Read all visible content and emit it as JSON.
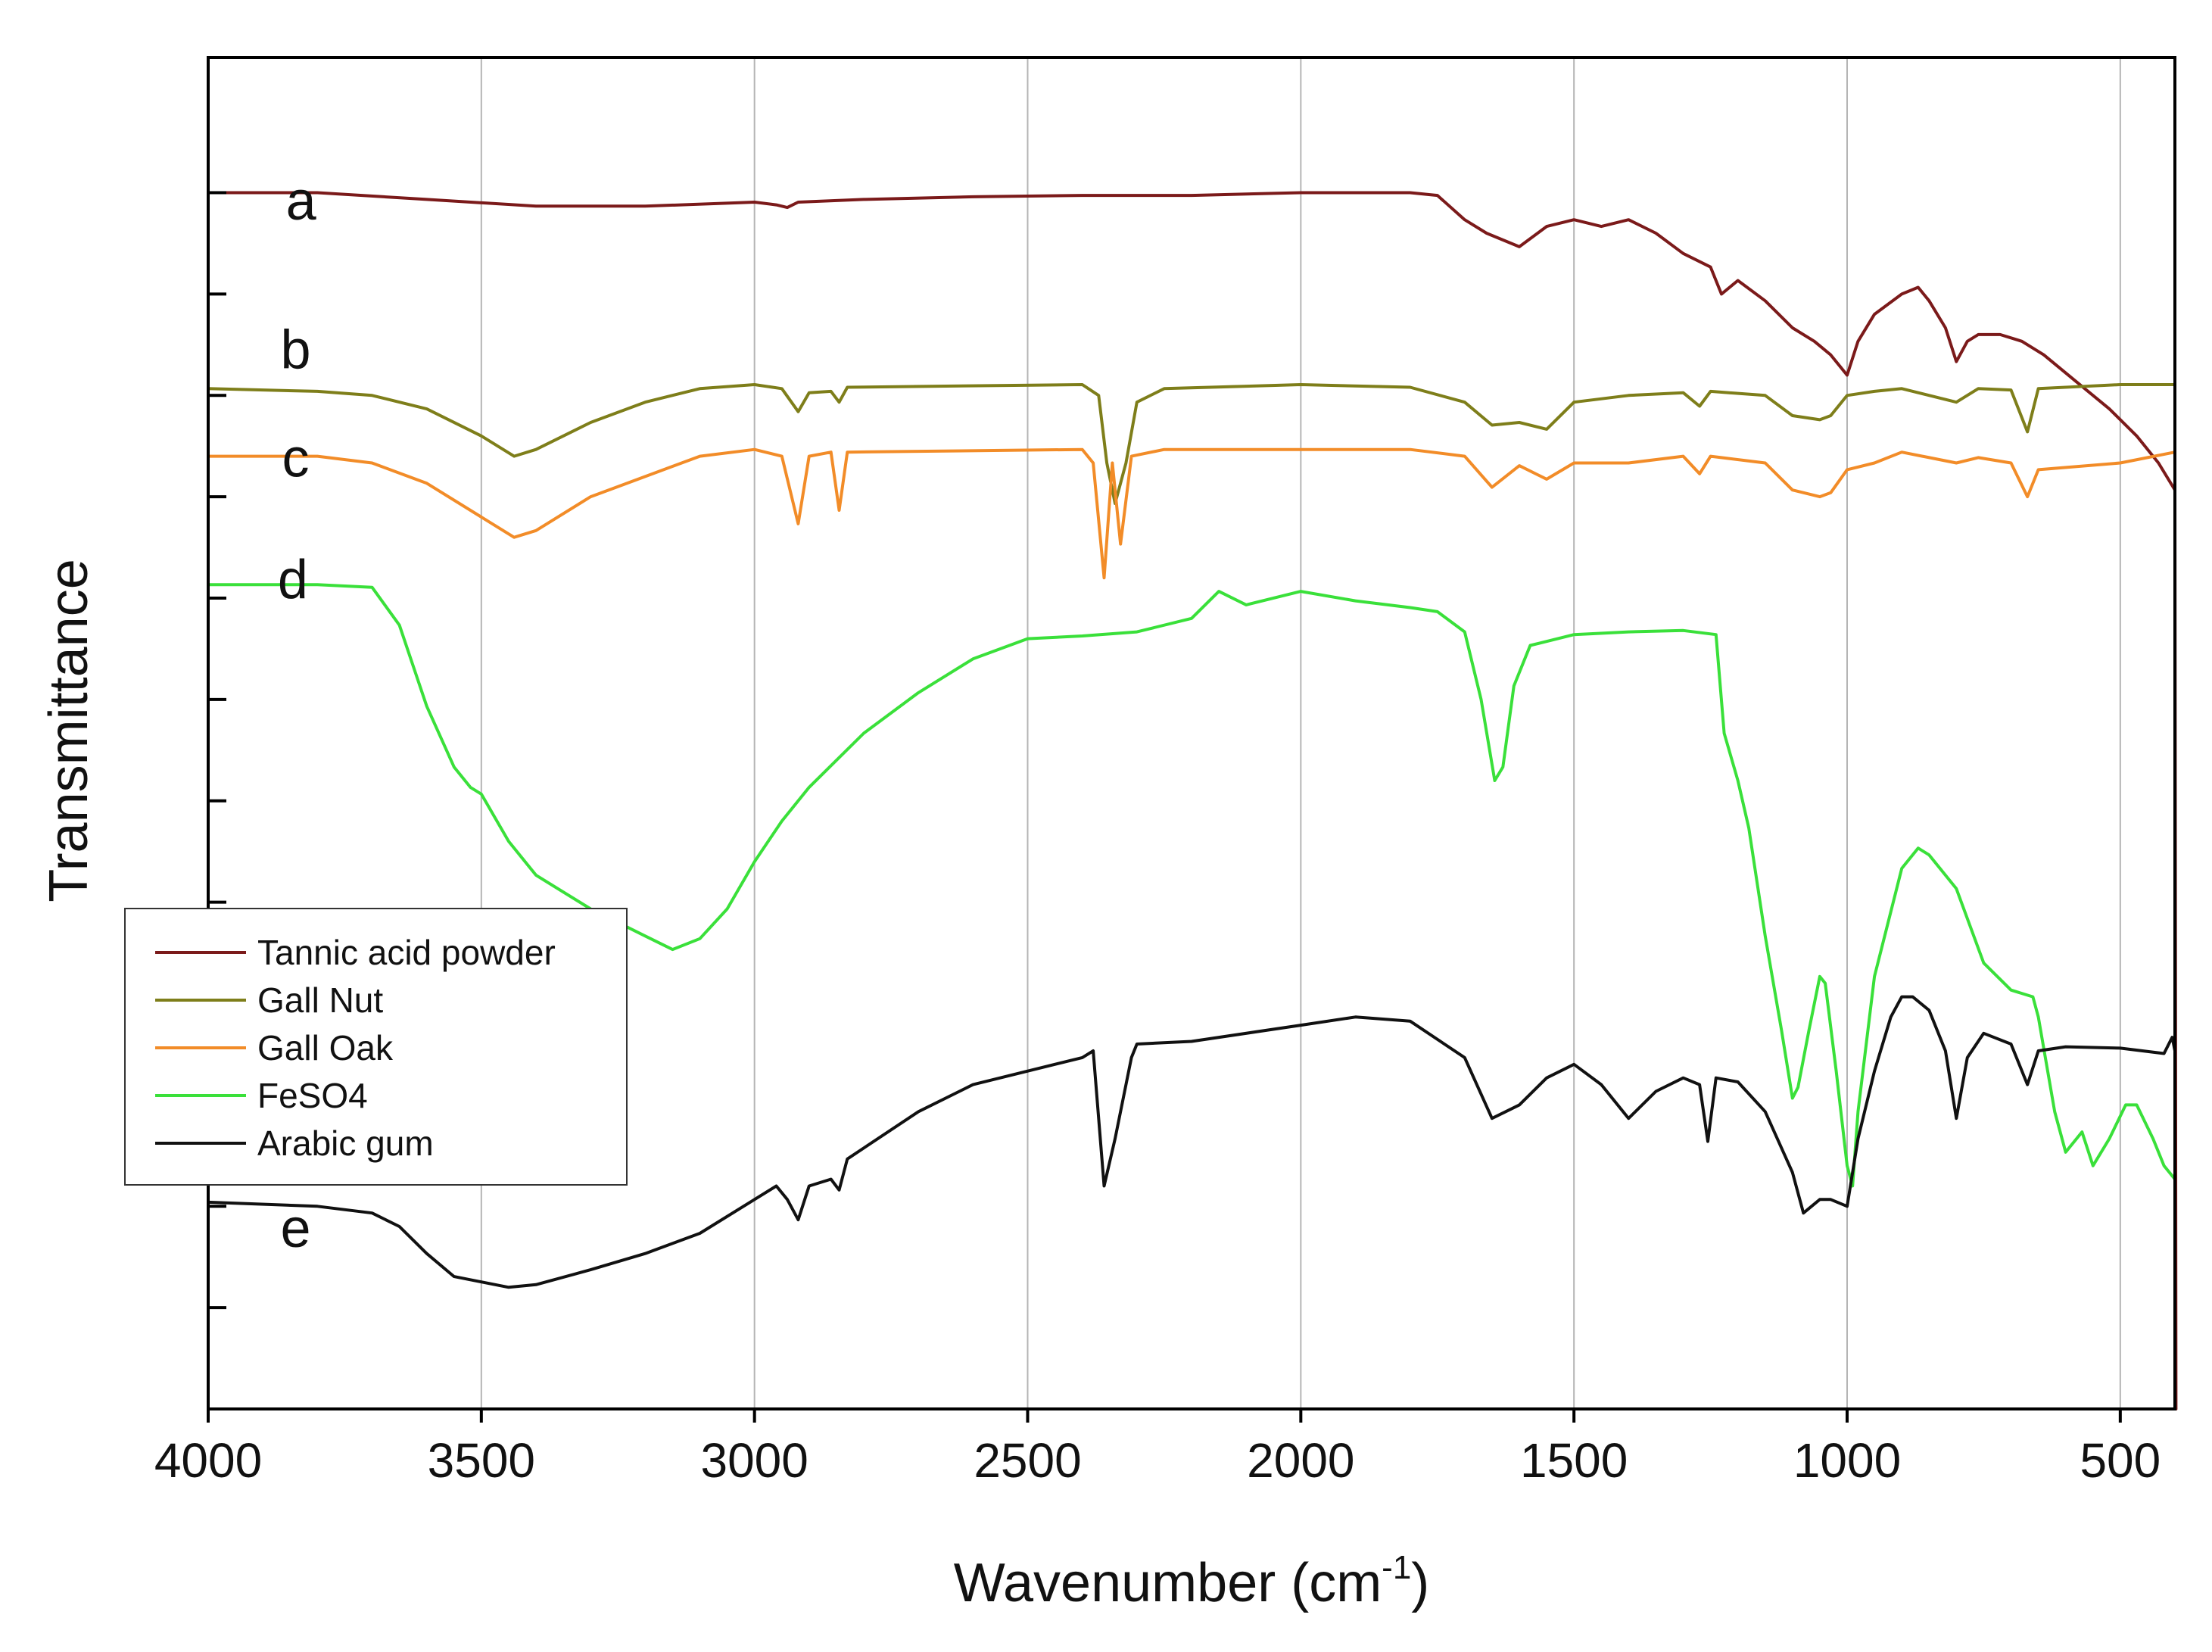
{
  "chart_data": {
    "type": "line",
    "title": "",
    "xlabel": "Wavenumber (cm",
    "xlabel_sup": "-1",
    "xlabel_close": ")",
    "ylabel": "Transmittance",
    "xlim": [
      4000,
      400
    ],
    "ylim": [
      0,
      100
    ],
    "x_ticks": [
      4000,
      3500,
      3000,
      2500,
      2000,
      1500,
      1000,
      500
    ],
    "x_tick_labels": [
      "4000",
      "3500",
      "3000",
      "2500",
      "2000",
      "1500",
      "1000",
      "500"
    ],
    "x_gridlines": [
      3500,
      3000,
      2500,
      2000,
      1500,
      1000,
      500
    ],
    "y_ticks": [
      7.5,
      15,
      22.5,
      30,
      37.5,
      45,
      52.5,
      60,
      67.5,
      75,
      82.5,
      90
    ],
    "legend_position": "lower-left",
    "series": [
      {
        "name": "Tannic acid powder",
        "label": "a",
        "color": "#7b1a1a",
        "label_x": 3830,
        "label_y": 88,
        "points": [
          [
            4000,
            90
          ],
          [
            3800,
            90
          ],
          [
            3600,
            89.5
          ],
          [
            3400,
            89
          ],
          [
            3200,
            89
          ],
          [
            3000,
            89.3
          ],
          [
            2960,
            89.1
          ],
          [
            2940,
            88.9
          ],
          [
            2920,
            89.3
          ],
          [
            2800,
            89.5
          ],
          [
            2600,
            89.7
          ],
          [
            2400,
            89.8
          ],
          [
            2200,
            89.8
          ],
          [
            2000,
            90
          ],
          [
            1800,
            90
          ],
          [
            1750,
            89.8
          ],
          [
            1700,
            88
          ],
          [
            1660,
            87
          ],
          [
            1600,
            86
          ],
          [
            1550,
            87.5
          ],
          [
            1500,
            88
          ],
          [
            1450,
            87.5
          ],
          [
            1400,
            88
          ],
          [
            1350,
            87
          ],
          [
            1300,
            85.5
          ],
          [
            1250,
            84.5
          ],
          [
            1230,
            82.5
          ],
          [
            1200,
            83.5
          ],
          [
            1150,
            82
          ],
          [
            1100,
            80
          ],
          [
            1060,
            79
          ],
          [
            1030,
            78
          ],
          [
            1000,
            76.5
          ],
          [
            980,
            79
          ],
          [
            950,
            81
          ],
          [
            900,
            82.5
          ],
          [
            870,
            83
          ],
          [
            850,
            82
          ],
          [
            820,
            80
          ],
          [
            800,
            77.5
          ],
          [
            780,
            79
          ],
          [
            760,
            79.5
          ],
          [
            720,
            79.5
          ],
          [
            680,
            79
          ],
          [
            640,
            78
          ],
          [
            580,
            76
          ],
          [
            520,
            74
          ],
          [
            470,
            72
          ],
          [
            430,
            70
          ],
          [
            400,
            68
          ],
          [
            398,
            0
          ]
        ]
      },
      {
        "name": "Gall Nut",
        "label": "b",
        "color": "#7e7e1a",
        "label_x": 3840,
        "label_y": 77,
        "points": [
          [
            4000,
            75.5
          ],
          [
            3800,
            75.3
          ],
          [
            3700,
            75
          ],
          [
            3600,
            74
          ],
          [
            3500,
            72
          ],
          [
            3440,
            70.5
          ],
          [
            3400,
            71
          ],
          [
            3300,
            73
          ],
          [
            3200,
            74.5
          ],
          [
            3100,
            75.5
          ],
          [
            3000,
            75.8
          ],
          [
            2950,
            75.5
          ],
          [
            2920,
            73.8
          ],
          [
            2900,
            75.2
          ],
          [
            2860,
            75.3
          ],
          [
            2845,
            74.5
          ],
          [
            2830,
            75.6
          ],
          [
            2400,
            75.8
          ],
          [
            2370,
            75
          ],
          [
            2355,
            70
          ],
          [
            2340,
            67
          ],
          [
            2320,
            70
          ],
          [
            2300,
            74.5
          ],
          [
            2250,
            75.5
          ],
          [
            2000,
            75.8
          ],
          [
            1800,
            75.6
          ],
          [
            1700,
            74.5
          ],
          [
            1650,
            72.8
          ],
          [
            1600,
            73
          ],
          [
            1550,
            72.5
          ],
          [
            1500,
            74.5
          ],
          [
            1400,
            75
          ],
          [
            1300,
            75.2
          ],
          [
            1270,
            74.2
          ],
          [
            1250,
            75.3
          ],
          [
            1150,
            75
          ],
          [
            1100,
            73.5
          ],
          [
            1050,
            73.2
          ],
          [
            1030,
            73.5
          ],
          [
            1000,
            75
          ],
          [
            950,
            75.3
          ],
          [
            900,
            75.5
          ],
          [
            800,
            74.5
          ],
          [
            760,
            75.5
          ],
          [
            700,
            75.4
          ],
          [
            670,
            72.3
          ],
          [
            650,
            75.5
          ],
          [
            500,
            75.8
          ],
          [
            400,
            75.8
          ]
        ]
      },
      {
        "name": "Gall Oak",
        "label": "c",
        "color": "#f28c28",
        "label_x": 3840,
        "label_y": 69,
        "points": [
          [
            4000,
            70.5
          ],
          [
            3800,
            70.5
          ],
          [
            3700,
            70
          ],
          [
            3600,
            68.5
          ],
          [
            3500,
            66
          ],
          [
            3440,
            64.5
          ],
          [
            3400,
            65
          ],
          [
            3300,
            67.5
          ],
          [
            3200,
            69
          ],
          [
            3100,
            70.5
          ],
          [
            3000,
            71
          ],
          [
            2950,
            70.5
          ],
          [
            2920,
            65.5
          ],
          [
            2900,
            70.5
          ],
          [
            2860,
            70.8
          ],
          [
            2845,
            66.5
          ],
          [
            2830,
            70.8
          ],
          [
            2400,
            71
          ],
          [
            2380,
            70
          ],
          [
            2360,
            61.5
          ],
          [
            2345,
            70
          ],
          [
            2330,
            64
          ],
          [
            2310,
            70.5
          ],
          [
            2250,
            71
          ],
          [
            2000,
            71
          ],
          [
            1800,
            71
          ],
          [
            1700,
            70.5
          ],
          [
            1650,
            68.2
          ],
          [
            1600,
            69.8
          ],
          [
            1550,
            68.8
          ],
          [
            1500,
            70
          ],
          [
            1400,
            70
          ],
          [
            1300,
            70.5
          ],
          [
            1270,
            69.2
          ],
          [
            1250,
            70.5
          ],
          [
            1150,
            70
          ],
          [
            1100,
            68
          ],
          [
            1050,
            67.5
          ],
          [
            1030,
            67.8
          ],
          [
            1000,
            69.5
          ],
          [
            950,
            70
          ],
          [
            900,
            70.8
          ],
          [
            800,
            70
          ],
          [
            760,
            70.4
          ],
          [
            700,
            70
          ],
          [
            670,
            67.5
          ],
          [
            650,
            69.5
          ],
          [
            500,
            70
          ],
          [
            400,
            70.8
          ]
        ]
      },
      {
        "name": "FeSO4",
        "label": "d",
        "color": "#3ae03a",
        "label_x": 3845,
        "label_y": 60,
        "points": [
          [
            4000,
            61
          ],
          [
            3800,
            61
          ],
          [
            3700,
            60.8
          ],
          [
            3650,
            58
          ],
          [
            3600,
            52
          ],
          [
            3550,
            47.5
          ],
          [
            3520,
            46
          ],
          [
            3500,
            45.5
          ],
          [
            3450,
            42
          ],
          [
            3400,
            39.5
          ],
          [
            3300,
            37
          ],
          [
            3200,
            35
          ],
          [
            3150,
            34
          ],
          [
            3100,
            34.8
          ],
          [
            3050,
            37
          ],
          [
            3000,
            40.5
          ],
          [
            2950,
            43.5
          ],
          [
            2900,
            46
          ],
          [
            2800,
            50
          ],
          [
            2700,
            53
          ],
          [
            2600,
            55.5
          ],
          [
            2500,
            57
          ],
          [
            2400,
            57.2
          ],
          [
            2300,
            57.5
          ],
          [
            2200,
            58.5
          ],
          [
            2150,
            60.5
          ],
          [
            2100,
            59.5
          ],
          [
            2000,
            60.5
          ],
          [
            1900,
            59.8
          ],
          [
            1800,
            59.3
          ],
          [
            1750,
            59
          ],
          [
            1700,
            57.5
          ],
          [
            1670,
            52.5
          ],
          [
            1645,
            46.5
          ],
          [
            1630,
            47.5
          ],
          [
            1610,
            53.5
          ],
          [
            1580,
            56.5
          ],
          [
            1500,
            57.3
          ],
          [
            1400,
            57.5
          ],
          [
            1300,
            57.6
          ],
          [
            1240,
            57.3
          ],
          [
            1225,
            50
          ],
          [
            1200,
            46.5
          ],
          [
            1180,
            43
          ],
          [
            1150,
            35
          ],
          [
            1120,
            28
          ],
          [
            1100,
            23
          ],
          [
            1090,
            23.8
          ],
          [
            1070,
            28
          ],
          [
            1050,
            32
          ],
          [
            1040,
            31.5
          ],
          [
            1020,
            25
          ],
          [
            1000,
            18
          ],
          [
            990,
            16.5
          ],
          [
            980,
            22
          ],
          [
            950,
            32
          ],
          [
            900,
            40
          ],
          [
            870,
            41.5
          ],
          [
            850,
            41
          ],
          [
            800,
            38.5
          ],
          [
            750,
            33
          ],
          [
            700,
            31
          ],
          [
            660,
            30.5
          ],
          [
            650,
            29
          ],
          [
            620,
            22
          ],
          [
            600,
            19
          ],
          [
            570,
            20.5
          ],
          [
            550,
            18
          ],
          [
            520,
            20
          ],
          [
            490,
            22.5
          ],
          [
            470,
            22.5
          ],
          [
            440,
            20
          ],
          [
            420,
            18
          ],
          [
            400,
            17
          ]
        ]
      },
      {
        "name": "Arabic gum",
        "label": "e",
        "color": "#111111",
        "label_x": 3840,
        "label_y": 12,
        "points": [
          [
            4000,
            15.3
          ],
          [
            3800,
            15
          ],
          [
            3700,
            14.5
          ],
          [
            3650,
            13.5
          ],
          [
            3600,
            11.5
          ],
          [
            3550,
            9.8
          ],
          [
            3500,
            9.4
          ],
          [
            3450,
            9
          ],
          [
            3400,
            9.2
          ],
          [
            3300,
            10.3
          ],
          [
            3200,
            11.5
          ],
          [
            3100,
            13
          ],
          [
            3000,
            15.5
          ],
          [
            2960,
            16.5
          ],
          [
            2940,
            15.5
          ],
          [
            2920,
            14
          ],
          [
            2900,
            16.5
          ],
          [
            2860,
            17
          ],
          [
            2845,
            16.2
          ],
          [
            2830,
            18.5
          ],
          [
            2700,
            22
          ],
          [
            2600,
            24
          ],
          [
            2400,
            26
          ],
          [
            2380,
            26.5
          ],
          [
            2360,
            16.5
          ],
          [
            2340,
            20
          ],
          [
            2310,
            26
          ],
          [
            2300,
            27
          ],
          [
            2200,
            27.2
          ],
          [
            2000,
            28.4
          ],
          [
            1900,
            29
          ],
          [
            1800,
            28.7
          ],
          [
            1700,
            26
          ],
          [
            1650,
            21.5
          ],
          [
            1600,
            22.5
          ],
          [
            1550,
            24.5
          ],
          [
            1500,
            25.5
          ],
          [
            1450,
            24
          ],
          [
            1400,
            21.5
          ],
          [
            1350,
            23.5
          ],
          [
            1300,
            24.5
          ],
          [
            1270,
            24
          ],
          [
            1255,
            19.8
          ],
          [
            1240,
            24.5
          ],
          [
            1200,
            24.2
          ],
          [
            1150,
            22
          ],
          [
            1100,
            17.5
          ],
          [
            1080,
            14.5
          ],
          [
            1050,
            15.5
          ],
          [
            1030,
            15.5
          ],
          [
            1000,
            15
          ],
          [
            980,
            20
          ],
          [
            950,
            25
          ],
          [
            920,
            29
          ],
          [
            900,
            30.5
          ],
          [
            880,
            30.5
          ],
          [
            850,
            29.5
          ],
          [
            820,
            26.5
          ],
          [
            800,
            21.5
          ],
          [
            780,
            26
          ],
          [
            750,
            27.8
          ],
          [
            700,
            27
          ],
          [
            670,
            24
          ],
          [
            650,
            26.5
          ],
          [
            600,
            26.8
          ],
          [
            500,
            26.7
          ],
          [
            420,
            26.3
          ],
          [
            405,
            27.5
          ],
          [
            400,
            26.5
          ]
        ]
      }
    ]
  }
}
